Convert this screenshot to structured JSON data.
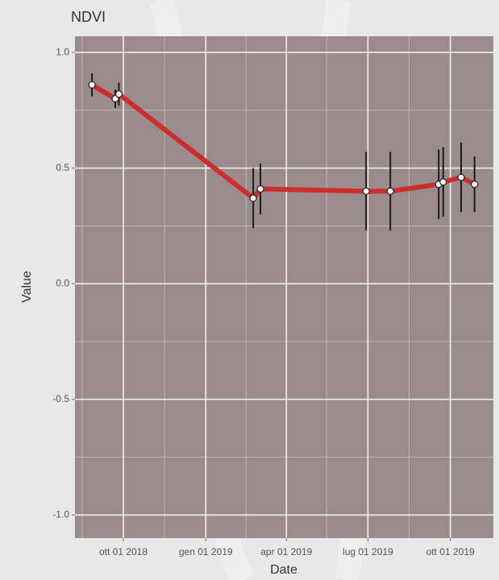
{
  "chart_data": {
    "type": "line",
    "title": "NDVI",
    "x_label": "Date",
    "y_label": "Value",
    "x": [
      "2018-08-27",
      "2018-09-22",
      "2018-09-26",
      "2019-02-23",
      "2019-03-03",
      "2019-06-29",
      "2019-07-26",
      "2019-09-18",
      "2019-09-23",
      "2019-10-13",
      "2019-10-28"
    ],
    "values": [
      0.86,
      0.8,
      0.82,
      0.37,
      0.41,
      0.4,
      0.4,
      0.43,
      0.44,
      0.46,
      0.43
    ],
    "errors": [
      0.05,
      0.04,
      0.05,
      0.13,
      0.11,
      0.17,
      0.17,
      0.15,
      0.15,
      0.15,
      0.12
    ],
    "color": "#cc2e2e",
    "xlim": [
      "2018-08-08",
      "2019-11-18"
    ],
    "xticks": [
      {
        "value": "2018-10-01",
        "label": "ott 01 2018"
      },
      {
        "value": "2019-01-01",
        "label": "gen 01 2019"
      },
      {
        "value": "2019-04-01",
        "label": "apr 01 2019"
      },
      {
        "value": "2019-07-01",
        "label": "lug 01 2019"
      },
      {
        "value": "2019-10-01",
        "label": "ott 01 2019"
      }
    ],
    "xminor": [
      "2018-08-16",
      "2018-11-16",
      "2019-02-15",
      "2019-05-16",
      "2019-08-16"
    ],
    "ylim": [
      -1.1,
      1.07
    ],
    "yticks": [
      {
        "value": 1,
        "label": "1.0"
      },
      0.5,
      {
        "value": 0,
        "label": "0.0"
      },
      -0.5,
      {
        "value": -1,
        "label": "-1.0"
      }
    ],
    "yminor": [
      0.75,
      0.25,
      -0.25,
      -0.75
    ],
    "grid": true
  }
}
